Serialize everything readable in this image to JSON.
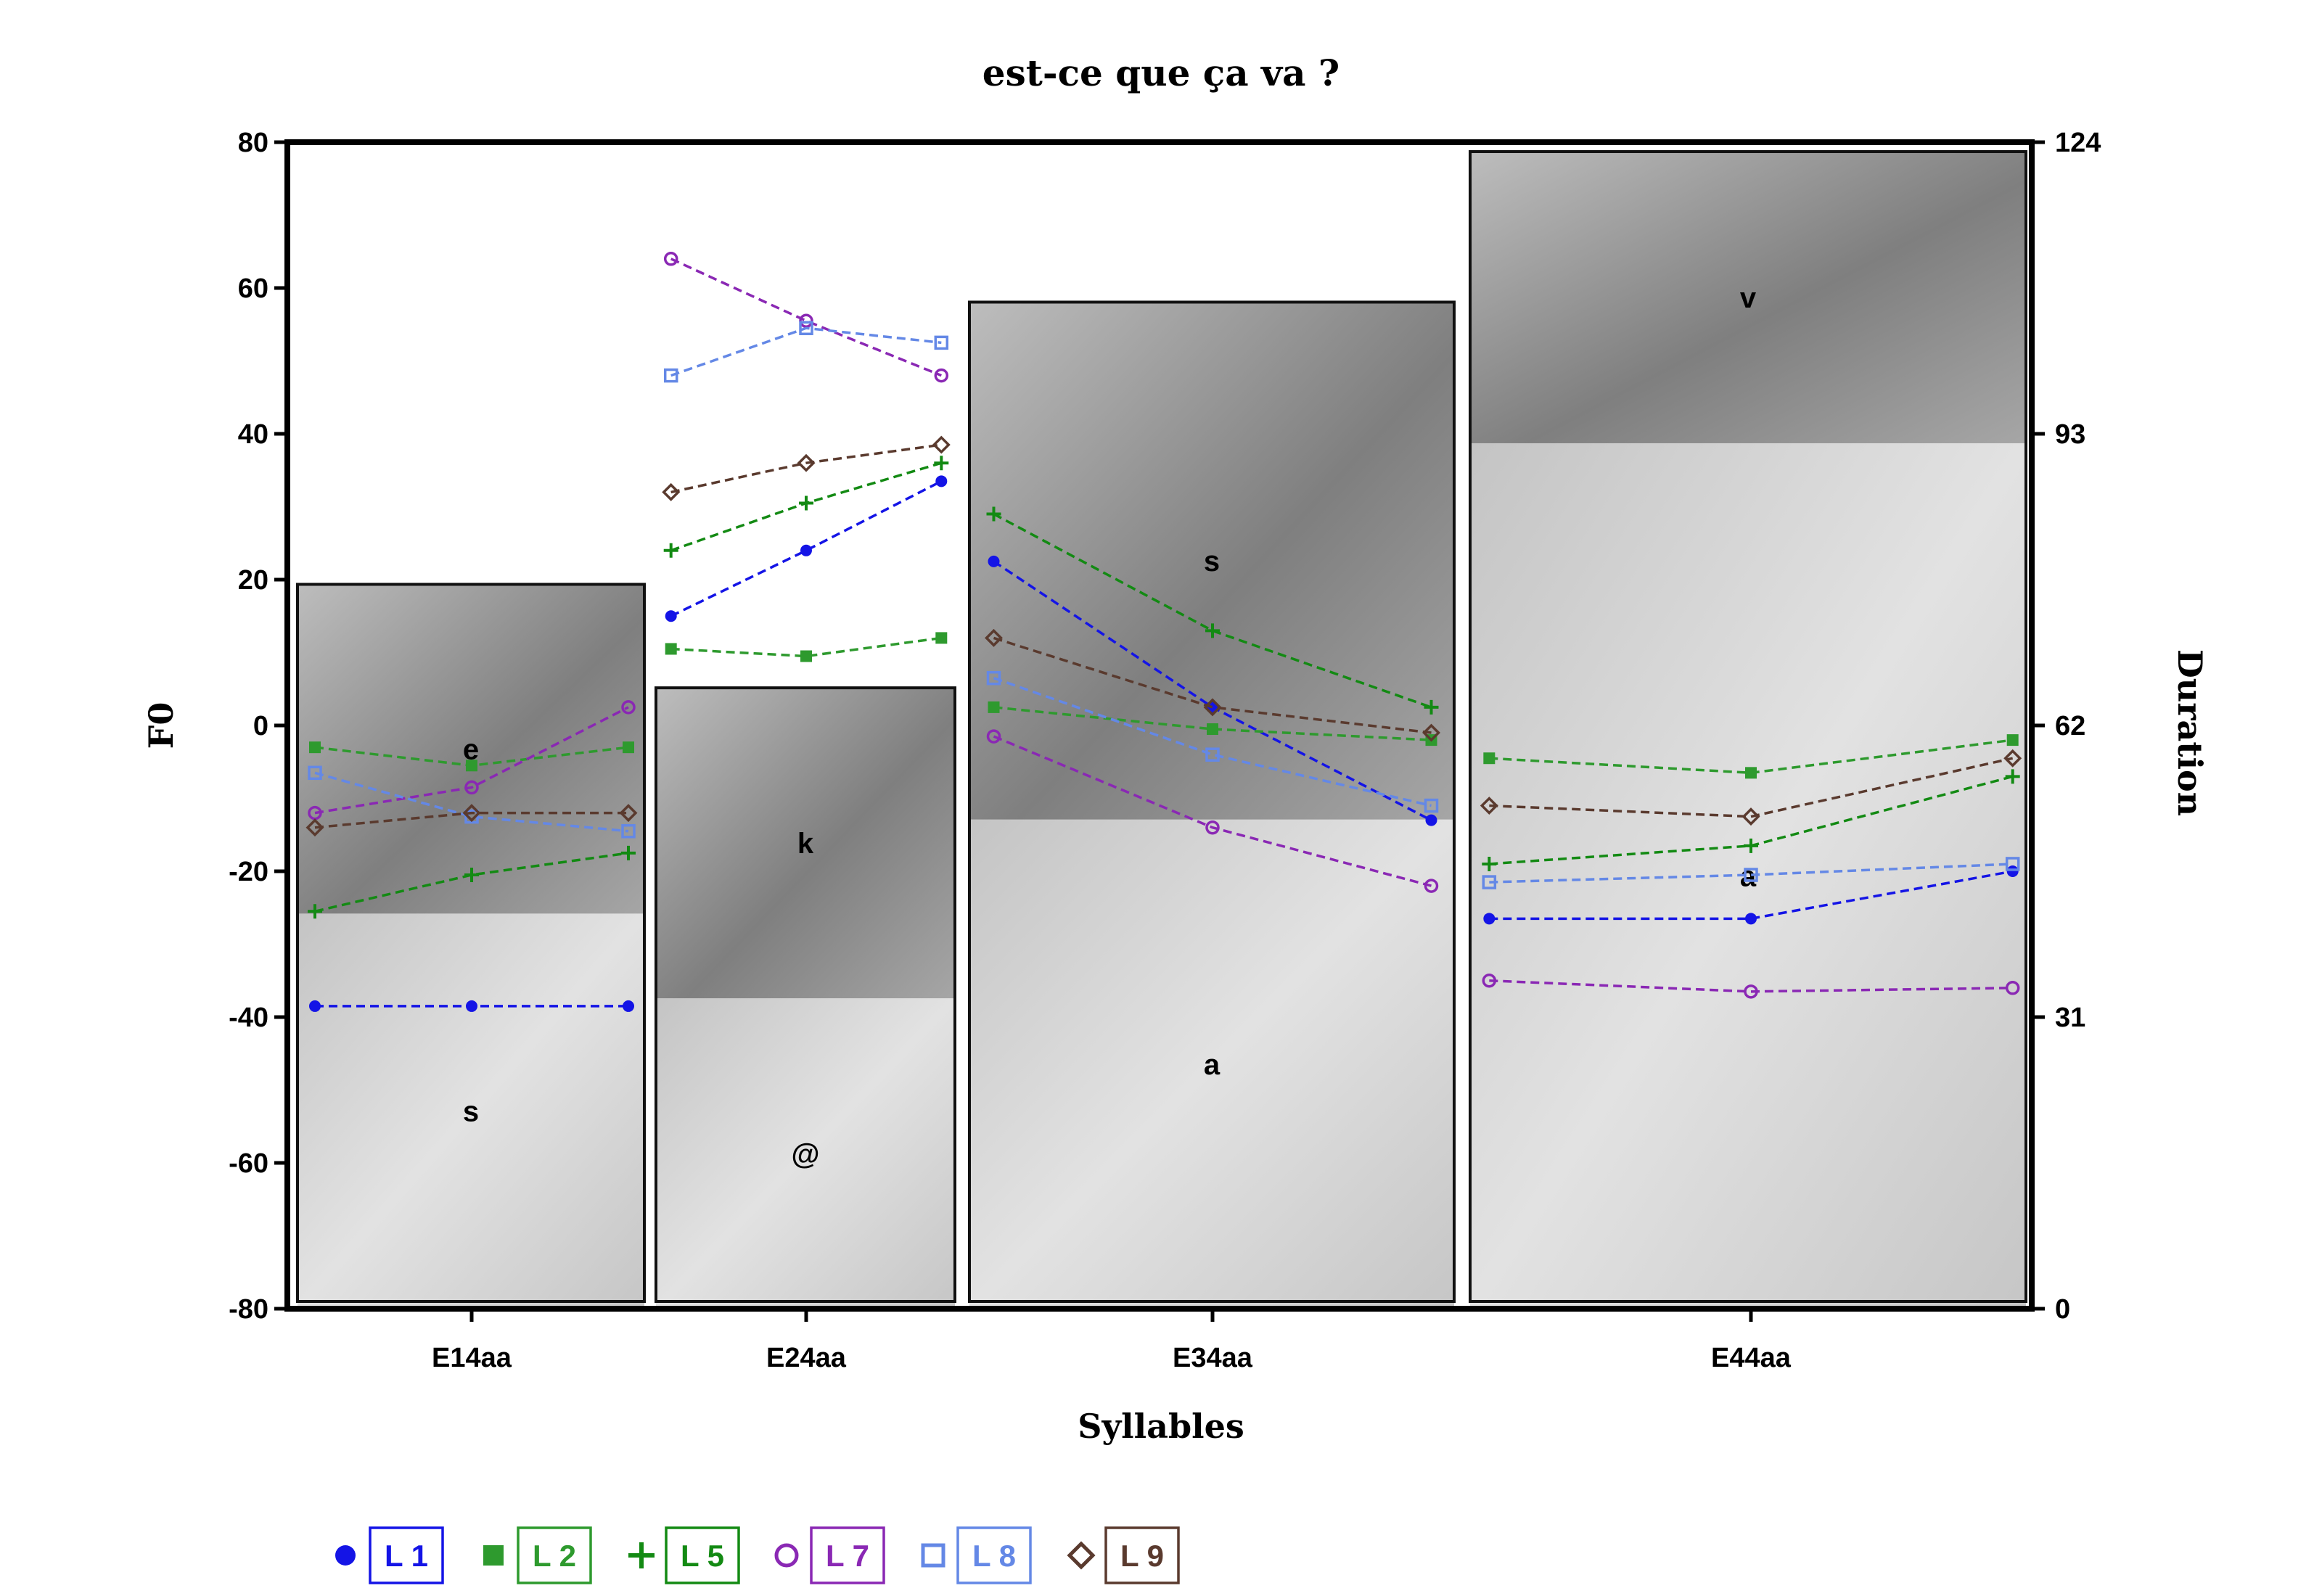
{
  "chart_data": {
    "type": "line",
    "title": "est-ce que ça va ?",
    "xlabel": "Syllables",
    "ylabel": "F0",
    "y2label": "Duration",
    "ylim": [
      -80,
      80
    ],
    "yticks": [
      -80,
      -60,
      -40,
      -20,
      0,
      20,
      40,
      60,
      80
    ],
    "y2lim": [
      0,
      124
    ],
    "y2ticks": [
      0,
      31,
      62,
      93,
      124
    ],
    "y2ticklabels": [
      "0",
      "31",
      "62",
      "93",
      "124"
    ],
    "grid": false,
    "legend_position": "bottom-left",
    "categories": [
      "E14aa",
      "E24aa",
      "E34aa",
      "E44aa"
    ],
    "syllables": [
      {
        "name": "E14aa",
        "segments": [
          {
            "label": "s",
            "duration": 42
          },
          {
            "label": "e",
            "duration": 35
          }
        ]
      },
      {
        "name": "E24aa",
        "segments": [
          {
            "label": "@",
            "duration": 33
          },
          {
            "label": "k",
            "duration": 33
          }
        ]
      },
      {
        "name": "E34aa",
        "segments": [
          {
            "label": "a",
            "duration": 52
          },
          {
            "label": "s",
            "duration": 55
          }
        ]
      },
      {
        "name": "E44aa",
        "segments": [
          {
            "label": "a",
            "duration": 92
          },
          {
            "label": "v",
            "duration": 31
          }
        ]
      }
    ],
    "series": [
      {
        "name": "L 1",
        "color": "#1414e6",
        "marker": "filled-circle",
        "values": [
          [
            -38.5,
            -38.5,
            -38.5
          ],
          [
            15,
            24,
            33.5
          ],
          [
            22.5,
            2.5,
            -13
          ],
          [
            -26.5,
            -26.5,
            -20
          ]
        ]
      },
      {
        "name": "L 2",
        "color": "#2e9a2e",
        "marker": "filled-square",
        "values": [
          [
            -3,
            -5.5,
            -3
          ],
          [
            10.5,
            9.5,
            12
          ],
          [
            2.5,
            -0.5,
            -2
          ],
          [
            -4.5,
            -6.5,
            -2
          ]
        ]
      },
      {
        "name": "L 5",
        "color": "#138a13",
        "marker": "plus",
        "values": [
          [
            -25.5,
            -20.5,
            -17.5
          ],
          [
            24,
            30.5,
            36
          ],
          [
            29,
            13,
            2.5
          ],
          [
            -19,
            -16.5,
            -7
          ]
        ]
      },
      {
        "name": "L 7",
        "color": "#8a28b4",
        "marker": "open-circle",
        "values": [
          [
            -12,
            -8.5,
            2.5
          ],
          [
            64,
            55.5,
            48
          ],
          [
            -1.5,
            -14,
            -22
          ],
          [
            -35,
            -36.5,
            -36
          ]
        ]
      },
      {
        "name": "L 8",
        "color": "#6488e6",
        "marker": "open-square",
        "values": [
          [
            -6.5,
            -12.5,
            -14.5
          ],
          [
            48,
            54.5,
            52.5
          ],
          [
            6.5,
            -4,
            -11
          ],
          [
            -21.5,
            -20.5,
            -19
          ]
        ]
      },
      {
        "name": "L 9",
        "color": "#5a3a2e",
        "marker": "open-diamond",
        "values": [
          [
            -14,
            -12,
            -12
          ],
          [
            32,
            36,
            38.5
          ],
          [
            12,
            2.5,
            -1
          ],
          [
            -11,
            -12.5,
            -4.5
          ]
        ]
      }
    ]
  }
}
